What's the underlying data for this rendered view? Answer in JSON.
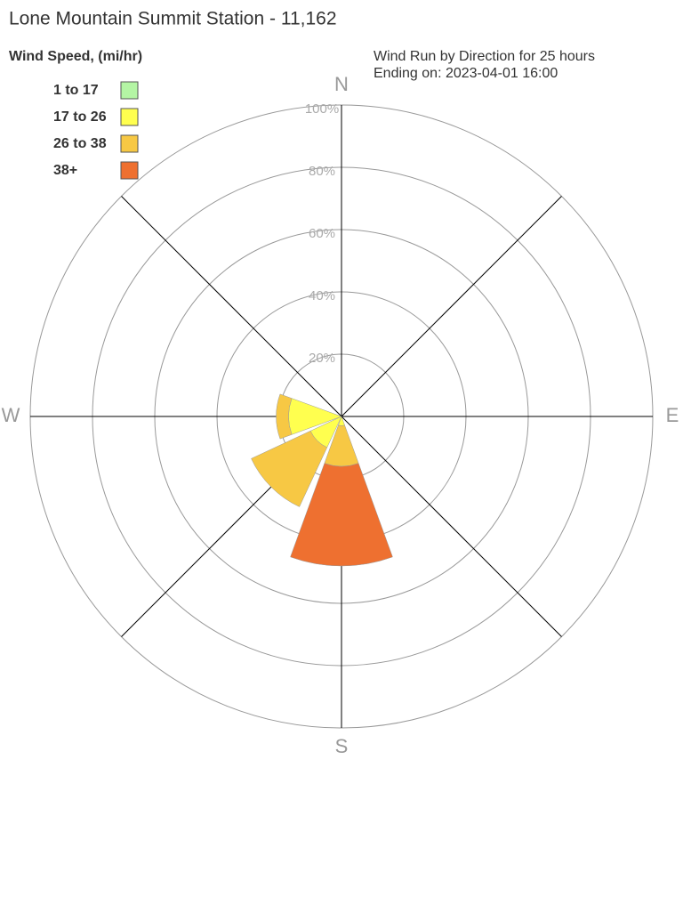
{
  "chart_data": {
    "type": "windrose",
    "title": "Lone Mountain Summit Station - 11,162",
    "legend_title": "Wind Speed, (mi/hr)",
    "subtitle": [
      "Wind Run by Direction for 25 hours",
      "Ending on: 2023-04-01 16:00"
    ],
    "categories": [
      "N",
      null,
      "E",
      null,
      "S",
      null,
      "W",
      null
    ],
    "series": [
      {
        "name": "1 to 17",
        "color": "#b4f5a4",
        "values": [
          0,
          0,
          0,
          0,
          0,
          0,
          0,
          0
        ]
      },
      {
        "name": "17 to 26",
        "color": "#ffff4f",
        "values": [
          0,
          0,
          0,
          0,
          3,
          11,
          17,
          0
        ]
      },
      {
        "name": "26 to 38",
        "color": "#f7c844",
        "values": [
          0,
          0,
          0,
          0,
          13,
          21,
          4,
          0
        ]
      },
      {
        "name": "38+",
        "color": "#ee7030",
        "values": [
          0,
          0,
          0,
          0,
          32,
          0,
          0,
          0
        ]
      }
    ],
    "rlim": [
      0,
      100
    ],
    "rticks": [
      {
        "value": 20,
        "label": "20%"
      },
      {
        "value": 40,
        "label": "40%"
      },
      {
        "value": 60,
        "label": "60%"
      },
      {
        "value": 80,
        "label": "80%"
      },
      {
        "value": 100,
        "label": "100%"
      }
    ],
    "grid": true
  }
}
